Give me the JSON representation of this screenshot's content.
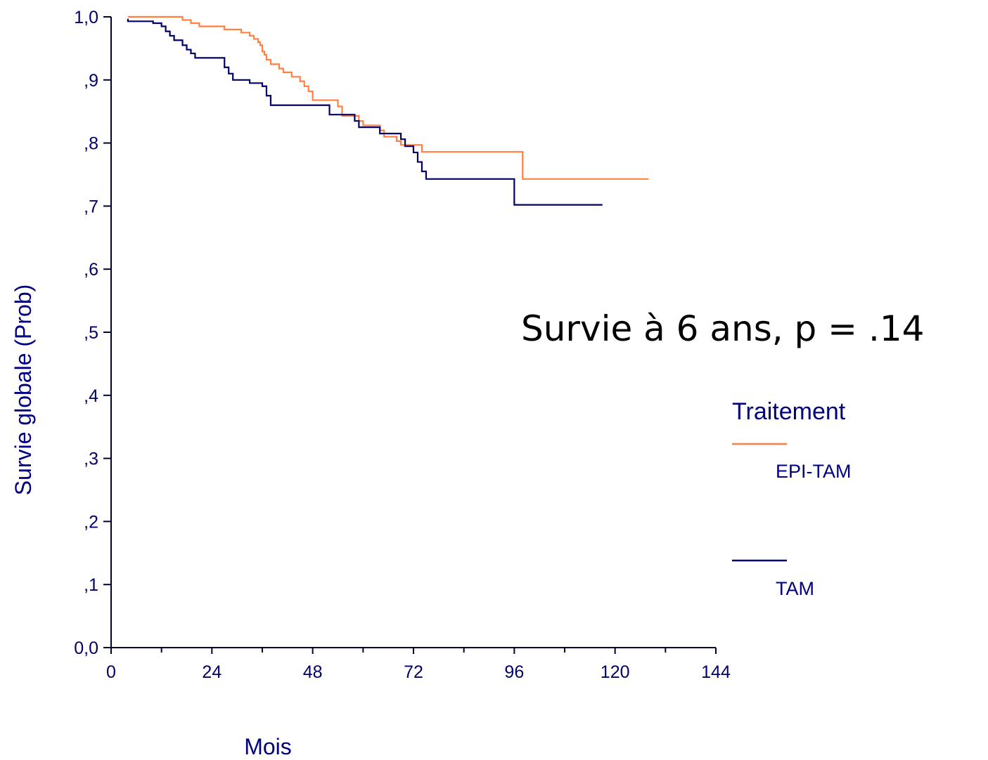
{
  "colors": {
    "background": "#ffffff",
    "axis": "#000033",
    "text": "#000080",
    "epi_tam": "#ff8040",
    "tam": "#000066"
  },
  "chart_data": {
    "type": "line",
    "step": true,
    "title": "",
    "xlabel": "Mois",
    "ylabel": "Survie globale (Prob)",
    "xlim": [
      0,
      144
    ],
    "ylim": [
      0,
      1
    ],
    "x_ticks": [
      0,
      24,
      48,
      72,
      96,
      120,
      144
    ],
    "x_tick_labels": [
      "0",
      "24",
      "48",
      "72",
      "96",
      "120",
      "144"
    ],
    "x_minor_ticks": [
      12,
      36,
      60,
      84,
      108,
      132
    ],
    "y_ticks": [
      0,
      0.1,
      0.2,
      0.3,
      0.4,
      0.5,
      0.6,
      0.7,
      0.8,
      0.9,
      1.0
    ],
    "y_tick_labels": [
      "0,0",
      ",1",
      ",2",
      ",3",
      ",4",
      ",5",
      ",6",
      ",7",
      ",8",
      ",9",
      "1,0"
    ],
    "grid": false,
    "annotation": "Survie à 6 ans, p = .14",
    "legend": {
      "title": "Traitement",
      "position": "right"
    },
    "series": [
      {
        "name": "EPI-TAM",
        "color": "#ff8040",
        "points": [
          [
            4,
            1.0
          ],
          [
            17,
            1.0
          ],
          [
            17,
            0.995
          ],
          [
            19,
            0.995
          ],
          [
            19,
            0.99
          ],
          [
            21,
            0.99
          ],
          [
            21,
            0.985
          ],
          [
            27,
            0.985
          ],
          [
            27,
            0.98
          ],
          [
            31,
            0.98
          ],
          [
            31,
            0.975
          ],
          [
            33,
            0.975
          ],
          [
            33,
            0.97
          ],
          [
            34,
            0.97
          ],
          [
            34,
            0.965
          ],
          [
            35,
            0.965
          ],
          [
            35,
            0.96
          ],
          [
            35.5,
            0.96
          ],
          [
            35.5,
            0.955
          ],
          [
            36,
            0.955
          ],
          [
            36,
            0.945
          ],
          [
            36.5,
            0.945
          ],
          [
            36.5,
            0.94
          ],
          [
            37,
            0.94
          ],
          [
            37,
            0.932
          ],
          [
            38,
            0.932
          ],
          [
            38,
            0.925
          ],
          [
            40,
            0.925
          ],
          [
            40,
            0.918
          ],
          [
            41,
            0.918
          ],
          [
            41,
            0.912
          ],
          [
            43,
            0.912
          ],
          [
            43,
            0.905
          ],
          [
            45,
            0.905
          ],
          [
            45,
            0.898
          ],
          [
            46,
            0.898
          ],
          [
            46,
            0.89
          ],
          [
            47,
            0.89
          ],
          [
            47,
            0.882
          ],
          [
            48,
            0.882
          ],
          [
            48,
            0.868
          ],
          [
            54,
            0.868
          ],
          [
            54,
            0.858
          ],
          [
            55,
            0.858
          ],
          [
            55,
            0.843
          ],
          [
            59,
            0.843
          ],
          [
            59,
            0.835
          ],
          [
            60,
            0.835
          ],
          [
            60,
            0.828
          ],
          [
            64,
            0.828
          ],
          [
            64,
            0.82
          ],
          [
            65,
            0.82
          ],
          [
            65,
            0.81
          ],
          [
            68,
            0.81
          ],
          [
            68,
            0.803
          ],
          [
            69,
            0.803
          ],
          [
            69,
            0.797
          ],
          [
            74,
            0.797
          ],
          [
            74,
            0.786
          ],
          [
            98,
            0.786
          ],
          [
            98,
            0.743
          ],
          [
            128,
            0.743
          ]
        ]
      },
      {
        "name": "TAM",
        "color": "#000066",
        "points": [
          [
            4,
            0.997
          ],
          [
            4,
            0.993
          ],
          [
            10,
            0.993
          ],
          [
            10,
            0.99
          ],
          [
            12,
            0.99
          ],
          [
            12,
            0.985
          ],
          [
            13,
            0.985
          ],
          [
            13,
            0.977
          ],
          [
            14,
            0.977
          ],
          [
            14,
            0.97
          ],
          [
            15,
            0.97
          ],
          [
            15,
            0.963
          ],
          [
            17,
            0.963
          ],
          [
            17,
            0.955
          ],
          [
            18,
            0.955
          ],
          [
            18,
            0.948
          ],
          [
            19,
            0.948
          ],
          [
            19,
            0.942
          ],
          [
            20,
            0.942
          ],
          [
            20,
            0.935
          ],
          [
            27,
            0.935
          ],
          [
            27,
            0.92
          ],
          [
            28,
            0.92
          ],
          [
            28,
            0.91
          ],
          [
            29,
            0.91
          ],
          [
            29,
            0.9
          ],
          [
            33,
            0.9
          ],
          [
            33,
            0.895
          ],
          [
            36,
            0.895
          ],
          [
            36,
            0.89
          ],
          [
            37,
            0.89
          ],
          [
            37,
            0.875
          ],
          [
            38,
            0.875
          ],
          [
            38,
            0.86
          ],
          [
            52,
            0.86
          ],
          [
            52,
            0.845
          ],
          [
            58,
            0.845
          ],
          [
            58,
            0.835
          ],
          [
            59,
            0.835
          ],
          [
            59,
            0.825
          ],
          [
            64,
            0.825
          ],
          [
            64,
            0.815
          ],
          [
            69,
            0.815
          ],
          [
            69,
            0.806
          ],
          [
            70,
            0.806
          ],
          [
            70,
            0.795
          ],
          [
            72,
            0.795
          ],
          [
            72,
            0.785
          ],
          [
            73,
            0.785
          ],
          [
            73,
            0.77
          ],
          [
            74,
            0.77
          ],
          [
            74,
            0.755
          ],
          [
            75,
            0.755
          ],
          [
            75,
            0.743
          ],
          [
            96,
            0.743
          ],
          [
            96,
            0.702
          ],
          [
            117,
            0.702
          ]
        ]
      }
    ]
  }
}
